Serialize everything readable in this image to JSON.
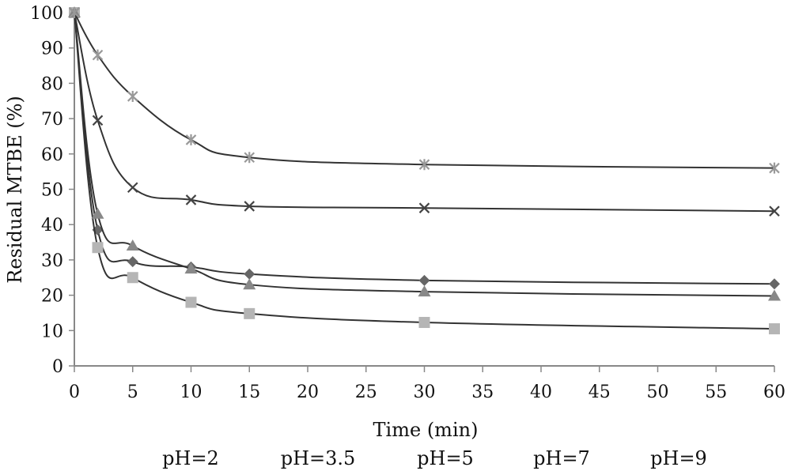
{
  "chart_data": {
    "type": "line",
    "xlabel": "Time (min)",
    "ylabel": "Residual MTBE (%)",
    "xlim": [
      0,
      60
    ],
    "ylim": [
      0,
      100
    ],
    "x_ticks": [
      0,
      5,
      10,
      15,
      20,
      25,
      30,
      35,
      40,
      45,
      50,
      55,
      60
    ],
    "y_ticks": [
      0,
      10,
      20,
      30,
      40,
      50,
      60,
      70,
      80,
      90,
      100
    ],
    "grid": false,
    "legend_position": "bottom",
    "x": [
      0,
      2,
      5,
      10,
      15,
      30,
      60
    ],
    "series": [
      {
        "name": "pH=2",
        "marker": "diamond",
        "color": "#666666",
        "values": [
          100,
          38.5,
          29.5,
          28,
          26,
          24.2,
          23.2
        ]
      },
      {
        "name": "pH=3.5",
        "marker": "square",
        "color": "#b5b5b5",
        "values": [
          100,
          33.5,
          25,
          18,
          14.8,
          12.3,
          10.5
        ]
      },
      {
        "name": "pH=5",
        "marker": "triangle",
        "color": "#888888",
        "values": [
          100,
          43,
          34,
          27.5,
          23,
          21,
          19.8
        ]
      },
      {
        "name": "pH=7",
        "marker": "x",
        "color": "#444444",
        "values": [
          100,
          69.5,
          50.5,
          47,
          45.2,
          44.7,
          43.8
        ]
      },
      {
        "name": "pH=9",
        "marker": "star",
        "color": "#999999",
        "values": [
          100,
          88,
          76.3,
          64,
          59,
          57,
          56
        ]
      }
    ]
  }
}
